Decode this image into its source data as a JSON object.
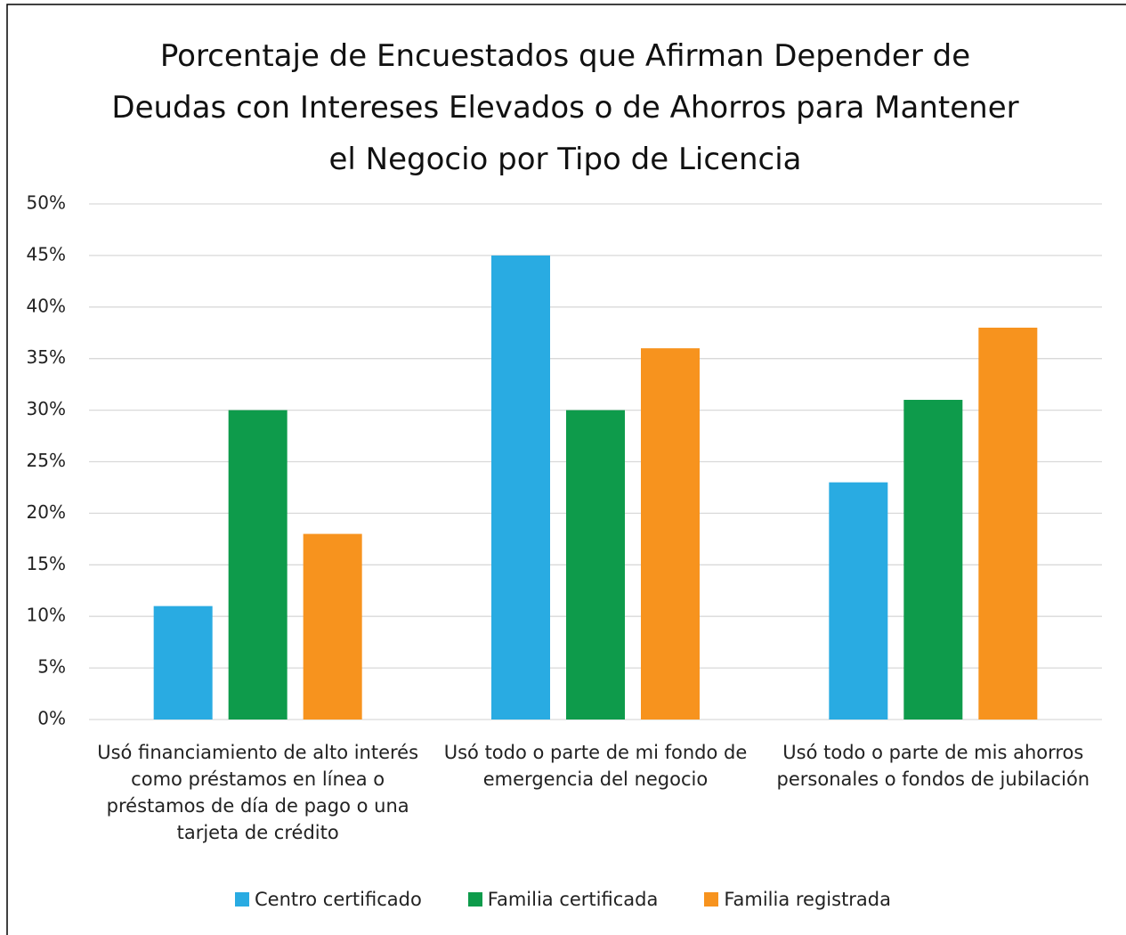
{
  "chart_data": {
    "type": "bar",
    "title": "Porcentaje de Encuestados que Afirman Depender de Deudas con Intereses Elevados o de Ahorros para Mantener el Negocio por Tipo de Licencia",
    "categories": [
      "Usó financiamiento de alto interés como préstamos en línea o préstamos de día de pago o una tarjeta de crédito",
      "Usó todo o parte de mi fondo de emergencia del negocio",
      "Usó todo o parte de mis ahorros personales o fondos de jubilación"
    ],
    "series": [
      {
        "name": "Centro certificado",
        "color": "#29abe2",
        "values": [
          11,
          45,
          23
        ]
      },
      {
        "name": "Familia certificada",
        "color": "#0e9b4b",
        "values": [
          30,
          30,
          31
        ]
      },
      {
        "name": "Familia registrada",
        "color": "#f7931e",
        "values": [
          18,
          36,
          38
        ]
      }
    ],
    "ylim": [
      0,
      50
    ],
    "yticks": [
      {
        "value": 0,
        "label": "0%"
      },
      {
        "value": 5,
        "label": "5%"
      },
      {
        "value": 10,
        "label": "10%"
      },
      {
        "value": 15,
        "label": "15%"
      },
      {
        "value": 20,
        "label": "20%"
      },
      {
        "value": 25,
        "label": "25%"
      },
      {
        "value": 30,
        "label": "30%"
      },
      {
        "value": 35,
        "label": "35%"
      },
      {
        "value": 40,
        "label": "40%"
      },
      {
        "value": 45,
        "label": "45%"
      },
      {
        "value": 50,
        "label": "50%"
      }
    ],
    "grid": true,
    "legend": "bottom"
  }
}
